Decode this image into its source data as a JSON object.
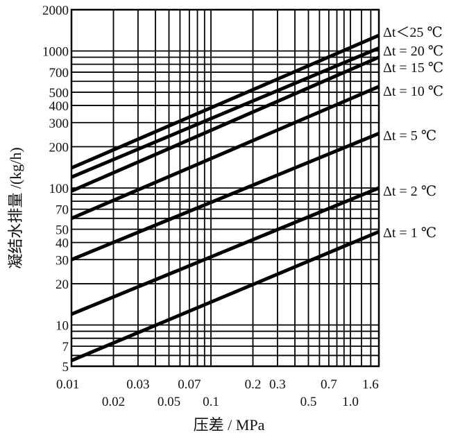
{
  "chart_data": {
    "type": "line",
    "xscale": "log",
    "yscale": "log",
    "xlim": [
      0.01,
      1.6
    ],
    "ylim": [
      5,
      2000
    ],
    "grid": true,
    "xlabel": "压差 / MPa",
    "ylabel": "凝结水排量 /(kg/h)",
    "xticks_top_row": [
      "0.01",
      "0.03",
      "0.07",
      "0.2",
      "0.3",
      "0.7",
      "1.6"
    ],
    "xticks_top_row_values": [
      0.01,
      0.03,
      0.07,
      0.2,
      0.3,
      0.7,
      1.6
    ],
    "xticks_bottom_row": [
      "0.02",
      "0.05",
      "0.1",
      "0.5",
      "1.0"
    ],
    "xticks_bottom_row_values": [
      0.02,
      0.05,
      0.1,
      0.5,
      1.0
    ],
    "yticks": [
      "2000",
      "1000",
      "700",
      "500",
      "400",
      "300",
      "200",
      "100",
      "70",
      "50",
      "40",
      "30",
      "20",
      "10",
      "7",
      "5"
    ],
    "ytick_values": [
      2000,
      1000,
      700,
      500,
      400,
      300,
      200,
      100,
      70,
      50,
      40,
      30,
      20,
      10,
      7,
      5
    ],
    "series": [
      {
        "name": "Δt＜25 ℃",
        "x": [
          0.01,
          1.6
        ],
        "y": [
          140,
          1300
        ]
      },
      {
        "name": "Δt = 20 ℃",
        "x": [
          0.01,
          1.6
        ],
        "y": [
          120,
          1050
        ]
      },
      {
        "name": "Δt = 15 ℃",
        "x": [
          0.01,
          1.6
        ],
        "y": [
          95,
          900
        ]
      },
      {
        "name": "Δt = 10 ℃",
        "x": [
          0.01,
          1.6
        ],
        "y": [
          60,
          550
        ]
      },
      {
        "name": "Δt = 5 ℃",
        "x": [
          0.01,
          1.6
        ],
        "y": [
          30,
          250
        ]
      },
      {
        "name": "Δt = 2 ℃",
        "x": [
          0.01,
          1.6
        ],
        "y": [
          12,
          100
        ]
      },
      {
        "name": "Δt = 1 ℃",
        "x": [
          0.01,
          1.6
        ],
        "y": [
          5.5,
          48
        ]
      }
    ]
  }
}
